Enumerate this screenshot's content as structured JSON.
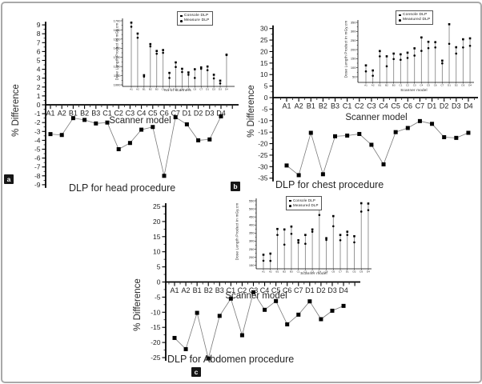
{
  "chart_data": [
    {
      "panel_label": "a",
      "type": "line",
      "title": "DLP for head procedure",
      "xlabel": "Scanner model",
      "ylabel": "% Difference",
      "ylim": [
        -9,
        9
      ],
      "ytick_step": 1,
      "grid": false,
      "categories": [
        "A1",
        "A2",
        "B1",
        "B2",
        "B3",
        "C1",
        "C2",
        "C3",
        "C4",
        "C5",
        "C6",
        "C7",
        "D1",
        "D2",
        "D3",
        "D4"
      ],
      "values": [
        -3.3,
        -3.4,
        -1.5,
        -1.7,
        -2.1,
        -2.0,
        -5.0,
        -4.3,
        -2.8,
        -2.5,
        -8.0,
        -1.4,
        -2.2,
        -4.0,
        -3.9,
        -1.3
      ],
      "inset": {
        "type": "scatter",
        "xlabel": "No of scanners",
        "ylabel": "Dose Length Product in mGy.cm",
        "ylim": [
          1000,
          1700
        ],
        "ytick_step": 100,
        "legend_position": "top-right",
        "categories": [
          "A1",
          "A2",
          "B1",
          "B2",
          "B3",
          "C1",
          "C2",
          "C3",
          "C4",
          "C5",
          "C6",
          "C7",
          "D1",
          "D2",
          "D3",
          "D4"
        ],
        "series": [
          {
            "name": "Console DLP",
            "marker": "square",
            "values": [
              1680,
              1560,
              1105,
              1445,
              1370,
              1380,
              1130,
              1245,
              1175,
              1135,
              1170,
              1190,
              1200,
              1110,
              1045,
              1330
            ]
          },
          {
            "name": "Measure DLP",
            "marker": "circle",
            "values": [
              1635,
              1515,
              1090,
              1420,
              1340,
              1350,
              1075,
              1195,
              1140,
              1110,
              1075,
              1175,
              1160,
              1070,
              1015,
              1325
            ]
          }
        ]
      }
    },
    {
      "panel_label": "b",
      "type": "line",
      "title": "DLP for chest procedure",
      "xlabel": "Scanner model",
      "ylabel": "% Difference",
      "ylim": [
        -35,
        30
      ],
      "ytick_step": 5,
      "grid": false,
      "categories": [
        "A1",
        "A2",
        "B1",
        "B2",
        "B3",
        "C1",
        "C2",
        "C3",
        "C4",
        "C5",
        "C6",
        "C7",
        "D1",
        "D2",
        "D3",
        "D4"
      ],
      "values": [
        -29.5,
        -33.7,
        -15.3,
        -33.3,
        -16.8,
        -16.5,
        -15.8,
        -20.5,
        -29.0,
        -15.0,
        -13.2,
        -10.2,
        -11.4,
        -17.2,
        -17.5,
        -15.3
      ],
      "inset": {
        "type": "scatter",
        "xlabel": "Scanner model",
        "ylabel": "Dose Length Product in mGy.cm",
        "ylim": [
          50,
          350
        ],
        "ytick_step": 50,
        "legend_position": "top-right",
        "categories": [
          "A1",
          "A2",
          "B1",
          "B2",
          "B3",
          "C1",
          "C2",
          "C3",
          "C4",
          "C5",
          "C6",
          "C7",
          "D1",
          "D2",
          "D3",
          "D4"
        ],
        "series": [
          {
            "name": "Console DLP",
            "marker": "square",
            "values": [
              113,
              85,
              192,
              163,
              178,
              174,
              183,
              207,
              267,
              243,
              241,
              139,
              340,
              213,
              257,
              262
            ]
          },
          {
            "name": "Measured DLP",
            "marker": "circle",
            "values": [
              80,
              56,
              163,
              108,
              148,
              144,
              154,
              167,
              193,
              208,
              212,
              124,
              232,
              178,
              212,
              221
            ]
          }
        ]
      }
    },
    {
      "panel_label": "c",
      "type": "line",
      "title": "DLP for Abdomen procedure",
      "xlabel": "Scanner model",
      "ylabel": "% Difference",
      "ylim": [
        -25,
        25
      ],
      "ytick_step": 5,
      "grid": false,
      "categories": [
        "A1",
        "A2",
        "B1",
        "B2",
        "B3",
        "C1",
        "C2",
        "C3",
        "C4",
        "C5",
        "C6",
        "C7",
        "D1",
        "D2",
        "D3",
        "D4"
      ],
      "values": [
        -18.5,
        -22.2,
        -10.2,
        -25.3,
        -11.2,
        -5.5,
        -17.6,
        -3.4,
        -9.2,
        -6.3,
        -14.0,
        -10.8,
        -6.4,
        -12.3,
        -9.5,
        -7.9
      ],
      "inset": {
        "type": "scatter",
        "xlabel": "Scanner model",
        "ylabel": "Dose Length Product in mGy.cm",
        "ylim": [
          150,
          550
        ],
        "ytick_step": 50,
        "legend_position": "top-right",
        "categories": [
          "A1",
          "A2",
          "B1",
          "B2",
          "B3",
          "C1",
          "C2",
          "C3",
          "C4",
          "C5",
          "C6",
          "C7",
          "D1",
          "D2",
          "D3",
          "D4"
        ],
        "series": [
          {
            "name": "Console DLP",
            "marker": "square",
            "values": [
              215,
              222,
              375,
              372,
              390,
              305,
              338,
              372,
              505,
              318,
              455,
              338,
              358,
              330,
              535,
              533
            ]
          },
          {
            "name": "Measured DLP",
            "marker": "circle",
            "values": [
              178,
              177,
              338,
              278,
              345,
              290,
              283,
              358,
              462,
              307,
              392,
              305,
              338,
              292,
              483,
              492
            ]
          }
        ]
      }
    }
  ],
  "colors": {
    "marker": "#000000",
    "series_line": "#7a7a7a",
    "stem_line": "#8a8a8a",
    "frame_border": "#a9a9a9"
  }
}
